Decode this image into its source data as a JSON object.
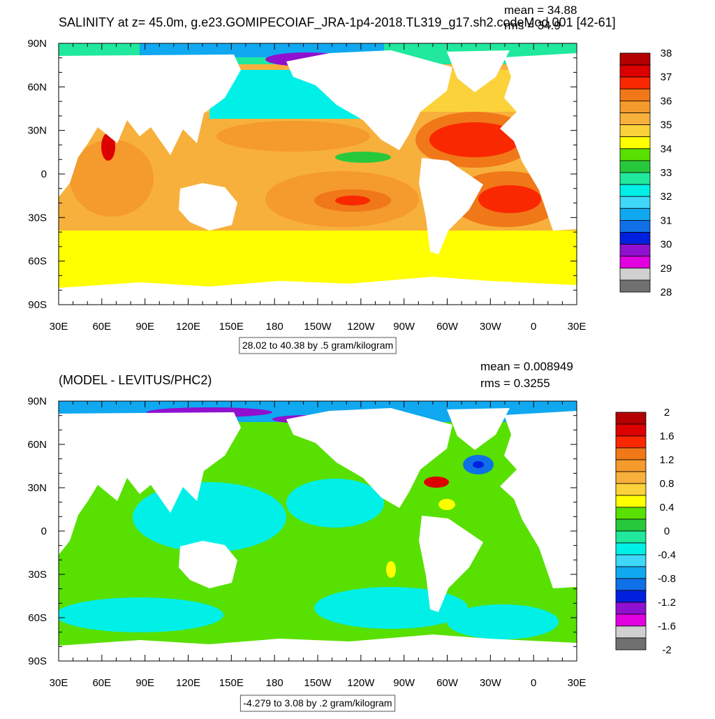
{
  "axes": {
    "x_labels": [
      "30E",
      "60E",
      "90E",
      "120E",
      "150E",
      "180",
      "150W",
      "120W",
      "90W",
      "60W",
      "30W",
      "0",
      "30E"
    ],
    "y_labels": [
      "90N",
      "60N",
      "30N",
      "0",
      "30S",
      "60S",
      "90S"
    ]
  },
  "colorbar_colors": [
    "#b40000",
    "#dc0000",
    "#fa2800",
    "#f07818",
    "#f59a2c",
    "#f8b03c",
    "#fcd23a",
    "#ffff00",
    "#58e000",
    "#28c83c",
    "#20e89c",
    "#00f0e8",
    "#40d8f8",
    "#10a8f0",
    "#1070e8",
    "#0020e0",
    "#9010d0",
    "#e000e0",
    "#d0d0d0",
    "#707070"
  ],
  "panels": [
    {
      "title": "SALINITY at z=  45.0m, g.e23.GOMIPECOIAF_JRA-1p4-2018.TL319_g17.sh2.codeMod.001 [42-61]",
      "mean": "mean = 34.88",
      "rms": "rms = 34.9",
      "colorbar_labels": [
        "38",
        "37",
        "36",
        "35",
        "34",
        "33",
        "32",
        "31",
        "30",
        "29",
        "28"
      ],
      "range_label": "28.02 to 40.38 by .5 gram/kilogram"
    },
    {
      "title": "(MODEL - LEVITUS/PHC2)",
      "mean": "mean = 0.008949",
      "rms": "rms = 0.3255",
      "colorbar_labels": [
        "2",
        "1.6",
        "1.2",
        "0.8",
        "0.4",
        "0",
        "-0.4",
        "-0.8",
        "-1.2",
        "-1.6",
        "-2"
      ],
      "range_label": "-4.279 to 3.08 by .2 gram/kilogram"
    }
  ]
}
